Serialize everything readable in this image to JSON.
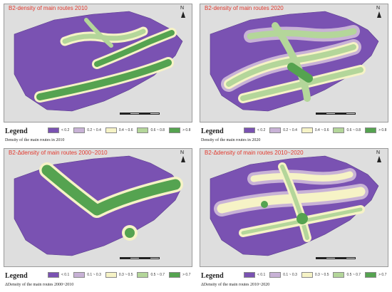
{
  "colors": {
    "c1": "#7a52b2",
    "c2": "#c8b2d6",
    "c3": "#f6f3c6",
    "c4": "#b4d69a",
    "c5": "#55a350",
    "hill": "#dedede"
  },
  "panels": [
    {
      "title": "B2-density of main routes 2010",
      "legend_title": "Legend",
      "legend_labels": [
        "< 0.2",
        "0.2 ~ 0.4",
        "0.4 ~ 0.6",
        "0.6 ~ 0.8",
        "> 0.8"
      ],
      "legend_subtitle": "Density of the main routes in 2010",
      "north": "N"
    },
    {
      "title": "B2-density of main routes 2020",
      "legend_title": "Legend",
      "legend_labels": [
        "< 0.2",
        "0.2 ~ 0.4",
        "0.4 ~ 0.6",
        "0.6 ~ 0.8",
        "> 0.8"
      ],
      "legend_subtitle": "Density of the main routes in 2020",
      "north": "N"
    },
    {
      "title": "B2-Δdensity of main routes 2000~2010",
      "legend_title": "Legend",
      "legend_labels": [
        "< 0.1",
        "0.1 ~ 0.3",
        "0.3 ~ 0.5",
        "0.5 ~ 0.7",
        "> 0.7"
      ],
      "legend_subtitle": "ΔDensity of the main routes 2000~2010",
      "north": "N"
    },
    {
      "title": "B2-Δdensity of main routes 2010~2020",
      "legend_title": "Legend",
      "legend_labels": [
        "< 0.1",
        "0.1 ~ 0.3",
        "0.3 ~ 0.5",
        "0.5 ~ 0.7",
        "> 0.7"
      ],
      "legend_subtitle": "ΔDensity of the main routes 2010~2020",
      "north": "N"
    }
  ]
}
